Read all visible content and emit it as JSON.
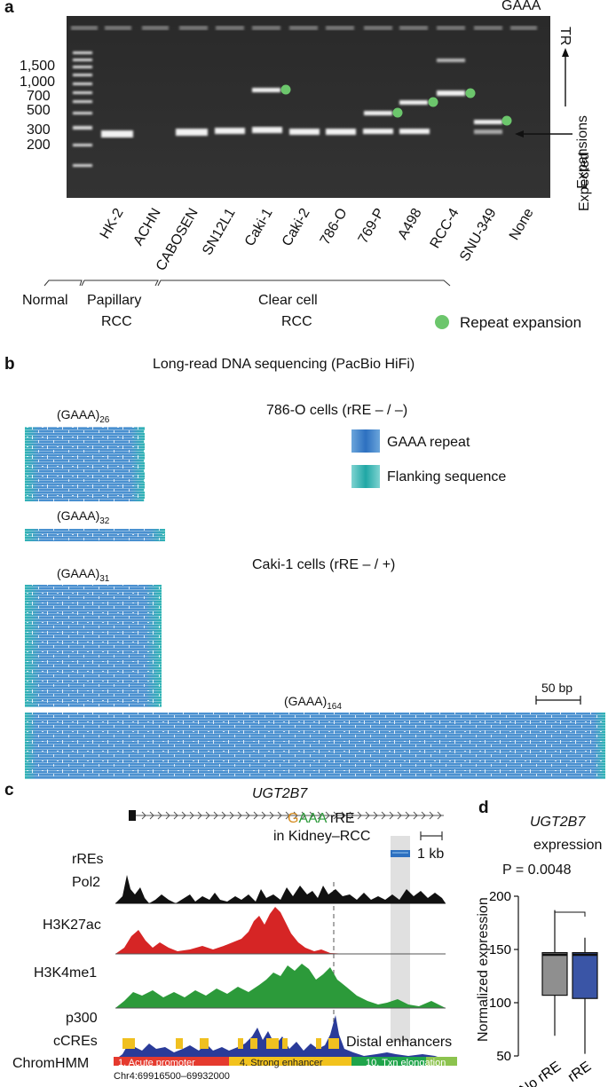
{
  "panel_a": {
    "letter": "a",
    "ladder_labels": [
      "1,500",
      "1,000",
      "700",
      "500",
      "300",
      "200"
    ],
    "lanes": [
      "HK-2",
      "ACHN",
      "CABOSEN",
      "SN12L1",
      "Caki-1",
      "Caki-2",
      "786-O",
      "769-P",
      "A498",
      "RCC-4",
      "SNU-349",
      "None"
    ],
    "gaaa": "GAAA",
    "tr": "TR",
    "expansions": "Expansions",
    "expected": "Expected",
    "groups": {
      "normal": "Normal",
      "papillary_1": "Papillary",
      "papillary_2": "RCC",
      "clear_1": "Clear cell",
      "clear_2": "RCC"
    },
    "legend": "Repeat expansion",
    "dot_color": "#6cc66c"
  },
  "panel_b": {
    "letter": "b",
    "title": "Long-read DNA sequencing (PacBio HiFi)",
    "cell1": "786-O cells (rRE – / –)",
    "cell2": "Caki-1 cells (rRE – / +)",
    "legend_repeat": "GAAA repeat",
    "legend_flank": "Flanking sequence",
    "reads": [
      {
        "base": "(GAAA)",
        "sub": "26"
      },
      {
        "base": "(GAAA)",
        "sub": "32"
      },
      {
        "base": "(GAAA)",
        "sub": "31"
      },
      {
        "base": "(GAAA)",
        "sub": "164"
      }
    ],
    "scale": "50 bp"
  },
  "panel_c": {
    "letter": "c",
    "gene": "UGT2B7",
    "rre_g": "G",
    "rre_aaa": "AAA",
    "rre_rest": " rRE",
    "rre_line2": "in Kidney–RCC",
    "scale": "1 kb",
    "tracks": [
      "rREs",
      "Pol2",
      "H3K27ac",
      "H3K4me1",
      "p300",
      "cCREs",
      "ChromHMM"
    ],
    "distal": "Distal enhancers",
    "states": [
      "1. Acute promoter",
      "4. Strong enhancer",
      "10. Txn elongation"
    ],
    "coords": "Chr4:69916500–69932000"
  },
  "panel_d": {
    "letter": "d",
    "title_gene": "UGT2B7",
    "title_2": "expression",
    "pval": "P = 0.0048",
    "ylabel": "Normalized expression",
    "chart_data": {
      "type": "box",
      "title": "UGT2B7 expression",
      "ylabel": "Normalized expression",
      "ylim": [
        50,
        200
      ],
      "yticks": [
        "50",
        "100",
        "150",
        "200"
      ],
      "categories": [
        "No rRE",
        "rRE"
      ],
      "boxes": [
        {
          "name": "No rRE",
          "min": 69,
          "q1": 107,
          "median": 145,
          "q3": 147,
          "max": 187,
          "color": "#8f8f8f"
        },
        {
          "name": "rRE",
          "min": 52,
          "q1": 104,
          "median": 145,
          "q3": 147,
          "max": 161,
          "color": "#3a55a6"
        }
      ],
      "annotation": "P = 0.0048"
    }
  }
}
